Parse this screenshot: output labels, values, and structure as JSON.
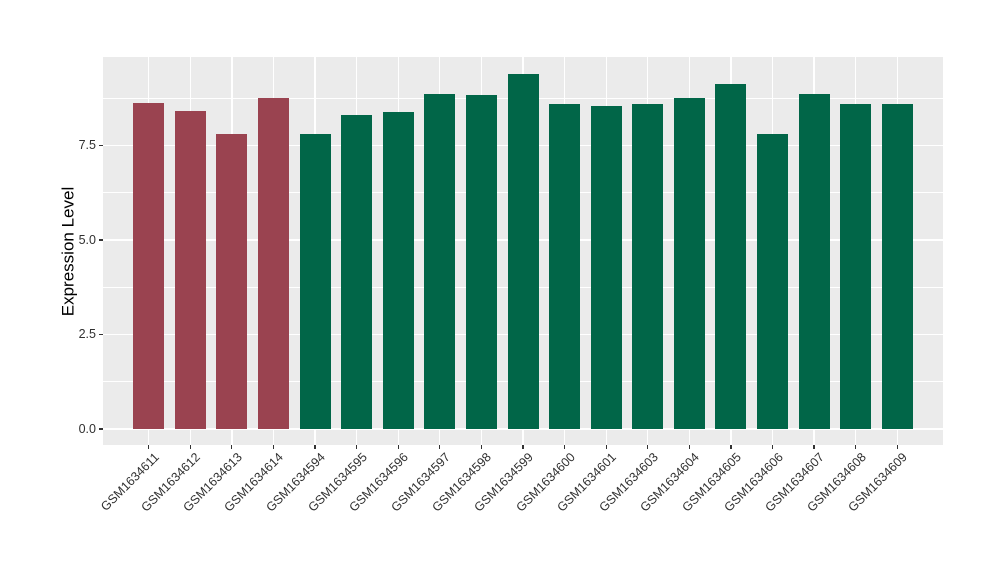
{
  "figure": {
    "background_color": "#FFFFFF",
    "panel_background_color": "#EBEBEB",
    "grid_color": "#FFFFFF",
    "tick_color": "#333333",
    "axis_text_color": "#303030",
    "axis_title_color": "#000000"
  },
  "chart_data": {
    "type": "bar",
    "title": "",
    "xlabel": "",
    "ylabel": "Expression Level",
    "legend": "none",
    "grid": true,
    "ylim": [
      0,
      9.84
    ],
    "yticks": [
      0,
      2.5,
      5.0,
      7.5
    ],
    "ytick_labels": [
      "0.0",
      "2.5",
      "5.0",
      "7.5"
    ],
    "yticks_minor": [
      1.25,
      3.75,
      6.25,
      8.75
    ],
    "categories": [
      "GSM1634611",
      "GSM1634612",
      "GSM1634613",
      "GSM1634614",
      "GSM1634594",
      "GSM1634595",
      "GSM1634596",
      "GSM1634597",
      "GSM1634598",
      "GSM1634599",
      "GSM1634600",
      "GSM1634601",
      "GSM1634603",
      "GSM1634604",
      "GSM1634605",
      "GSM1634606",
      "GSM1634607",
      "GSM1634608",
      "GSM1634609"
    ],
    "values": [
      8.63,
      8.41,
      7.8,
      8.77,
      7.81,
      8.31,
      8.39,
      8.87,
      8.84,
      9.39,
      8.61,
      8.55,
      8.6,
      8.77,
      9.14,
      7.8,
      8.86,
      8.59,
      8.61
    ],
    "groups": [
      "group-1",
      "group-1",
      "group-1",
      "group-1",
      "group-2",
      "group-2",
      "group-2",
      "group-2",
      "group-2",
      "group-2",
      "group-2",
      "group-2",
      "group-2",
      "group-2",
      "group-2",
      "group-2",
      "group-2",
      "group-2",
      "group-2"
    ],
    "group_colors": {
      "group-1": "#9A4350",
      "group-2": "#016648"
    }
  }
}
